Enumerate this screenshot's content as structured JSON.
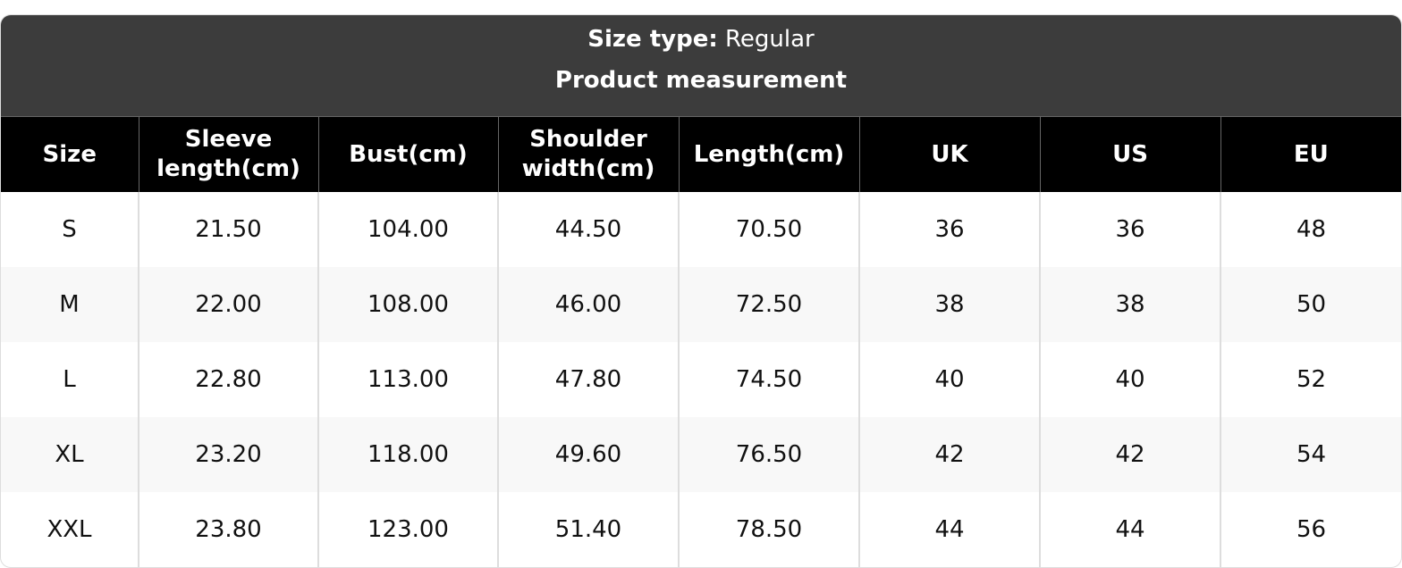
{
  "header": {
    "size_type_label": "Size type:",
    "size_type_value": "Regular",
    "title": "Product measurement"
  },
  "table": {
    "columns": [
      "Size",
      "Sleeve length(cm)",
      "Bust(cm)",
      "Shoulder width(cm)",
      "Length(cm)",
      "UK",
      "US",
      "EU"
    ],
    "rows": [
      [
        "S",
        "21.50",
        "104.00",
        "44.50",
        "70.50",
        "36",
        "36",
        "48"
      ],
      [
        "M",
        "22.00",
        "108.00",
        "46.00",
        "72.50",
        "38",
        "38",
        "50"
      ],
      [
        "L",
        "22.80",
        "113.00",
        "47.80",
        "74.50",
        "40",
        "40",
        "52"
      ],
      [
        "XL",
        "23.20",
        "118.00",
        "49.60",
        "76.50",
        "42",
        "42",
        "54"
      ],
      [
        "XXL",
        "23.80",
        "123.00",
        "51.40",
        "78.50",
        "44",
        "44",
        "56"
      ]
    ]
  }
}
